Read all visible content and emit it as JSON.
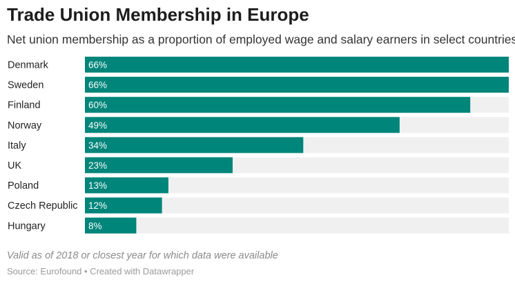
{
  "chart_data": {
    "type": "bar",
    "orientation": "horizontal",
    "title": "Trade Union Membership in Europe",
    "subtitle": "Net union membership as a proportion of employed wage and salary earners in select countries",
    "categories": [
      "Denmark",
      "Sweden",
      "Finland",
      "Norway",
      "Italy",
      "UK",
      "Poland",
      "Czech Republic",
      "Hungary"
    ],
    "values": [
      66,
      66,
      60,
      49,
      34,
      23,
      13,
      12,
      8
    ],
    "value_labels": [
      "66%",
      "66%",
      "60%",
      "49%",
      "34%",
      "23%",
      "13%",
      "12%",
      "8%"
    ],
    "xlim": [
      0,
      66
    ],
    "unit": "%",
    "bar_color": "#00857a",
    "track_color": "#f0f0f0",
    "note": "Valid as of 2018 or closest year for which data were available",
    "source": "Source: Eurofound • Created with Datawrapper"
  }
}
